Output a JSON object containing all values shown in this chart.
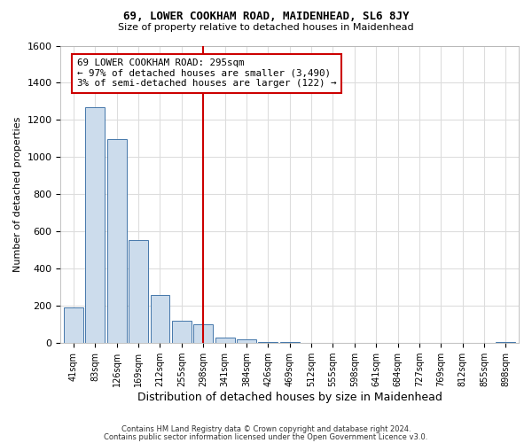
{
  "title1": "69, LOWER COOKHAM ROAD, MAIDENHEAD, SL6 8JY",
  "title2": "Size of property relative to detached houses in Maidenhead",
  "xlabel": "Distribution of detached houses by size in Maidenhead",
  "ylabel": "Number of detached properties",
  "bar_labels": [
    "41sqm",
    "83sqm",
    "126sqm",
    "169sqm",
    "212sqm",
    "255sqm",
    "298sqm",
    "341sqm",
    "384sqm",
    "426sqm",
    "469sqm",
    "512sqm",
    "555sqm",
    "598sqm",
    "641sqm",
    "684sqm",
    "727sqm",
    "769sqm",
    "812sqm",
    "855sqm",
    "898sqm"
  ],
  "bar_values": [
    193,
    1270,
    1095,
    555,
    260,
    120,
    100,
    30,
    18,
    8,
    4,
    2,
    1,
    0,
    0,
    0,
    0,
    0,
    0,
    0,
    5
  ],
  "bar_color": "#ccdcec",
  "bar_edge_color": "#4477aa",
  "vline_x_index": 6,
  "vline_color": "#cc0000",
  "annotation_line1": "69 LOWER COOKHAM ROAD: 295sqm",
  "annotation_line2": "← 97% of detached houses are smaller (3,490)",
  "annotation_line3": "3% of semi-detached houses are larger (122) →",
  "annotation_box_color": "white",
  "annotation_box_edge": "#cc0000",
  "ylim": [
    0,
    1600
  ],
  "yticks": [
    0,
    200,
    400,
    600,
    800,
    1000,
    1200,
    1400,
    1600
  ],
  "bg_color": "#ffffff",
  "plot_bg_color": "#ffffff",
  "grid_color": "#dddddd",
  "footer1": "Contains HM Land Registry data © Crown copyright and database right 2024.",
  "footer2": "Contains public sector information licensed under the Open Government Licence v3.0."
}
